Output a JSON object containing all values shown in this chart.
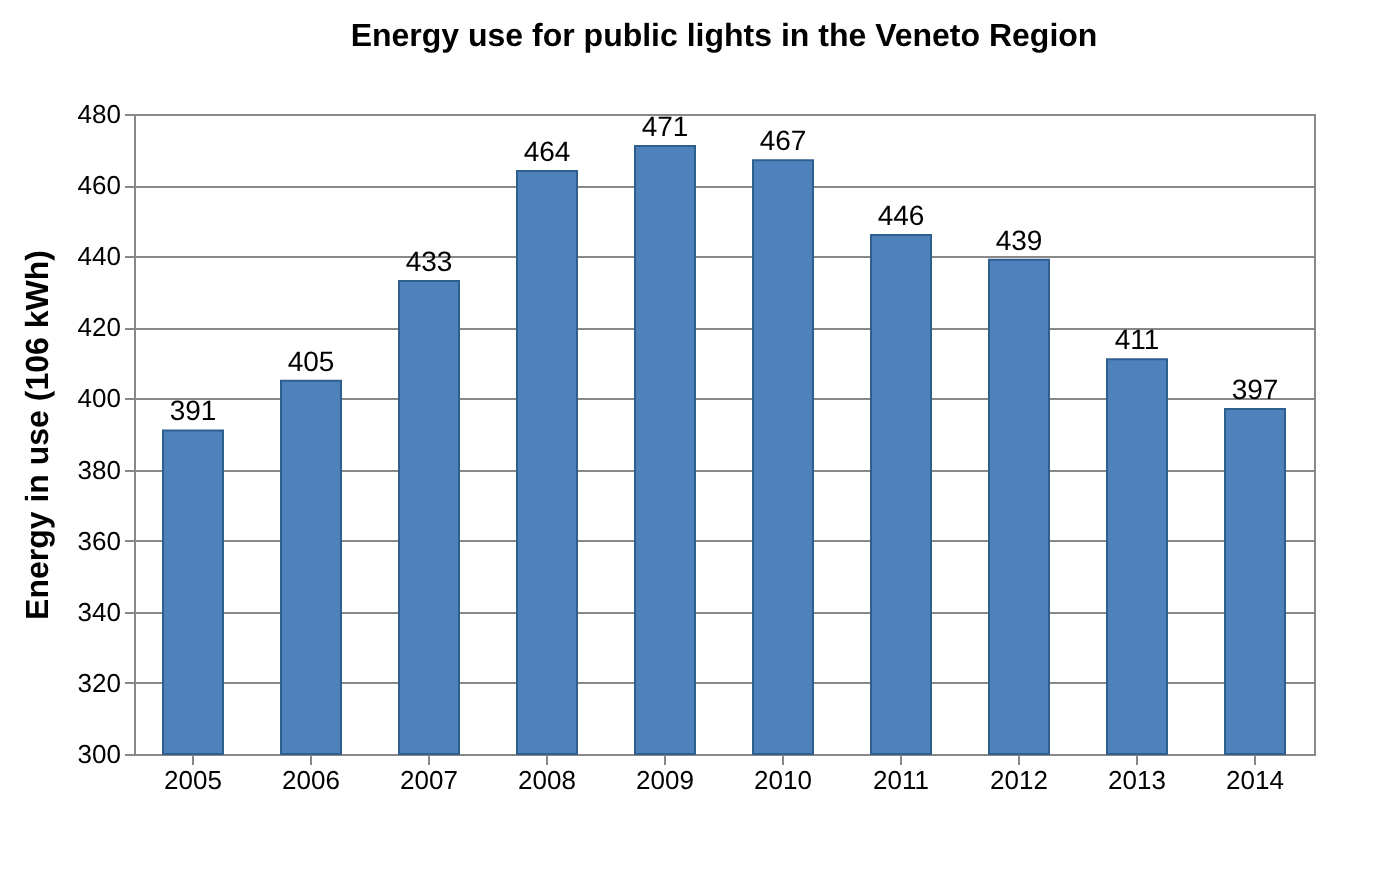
{
  "chart_data": {
    "type": "bar",
    "title": "Energy use for public lights in the Veneto Region",
    "ylabel": "Energy in use  (106 kWh)",
    "categories": [
      "2005",
      "2006",
      "2007",
      "2008",
      "2009",
      "2010",
      "2011",
      "2012",
      "2013",
      "2014"
    ],
    "values": [
      391,
      405,
      433,
      464,
      471,
      467,
      446,
      439,
      411,
      397
    ],
    "color": "#4f81bd",
    "ylim": [
      300,
      480
    ],
    "yticks": [
      300,
      320,
      340,
      360,
      380,
      400,
      420,
      440,
      460,
      480
    ],
    "grid": "y",
    "data_labels": true
  }
}
